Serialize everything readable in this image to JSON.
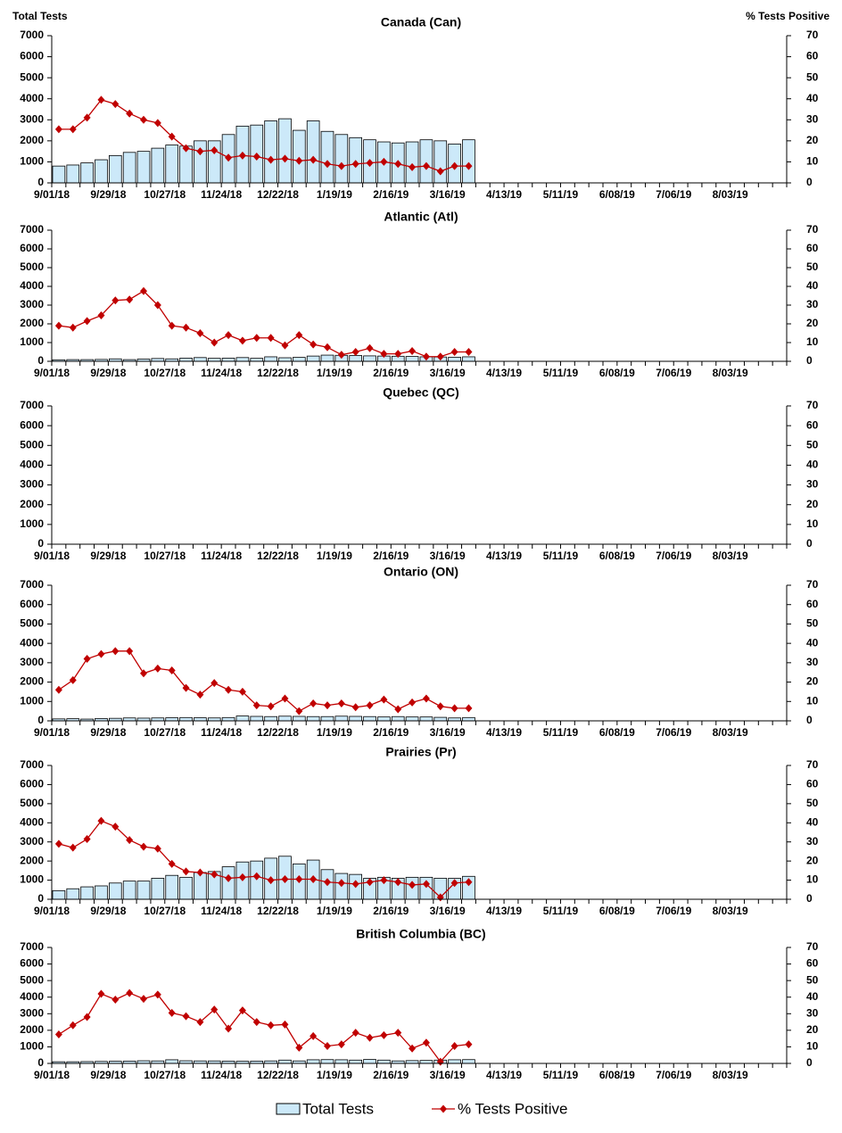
{
  "chart_data": [
    {
      "type": "bar_line",
      "title": "Canada (Can)",
      "y_label": "Total Tests",
      "y2_label": "% Tests Positive",
      "categories": [
        "9/01/18",
        null,
        null,
        null,
        "9/29/18",
        null,
        null,
        null,
        "10/27/18",
        null,
        null,
        null,
        "11/24/18",
        null,
        null,
        null,
        "12/22/18",
        null,
        null,
        null,
        "1/19/19",
        null,
        null,
        null,
        "2/16/19",
        null,
        null,
        null,
        "3/16/19",
        null,
        null,
        null,
        "4/13/19",
        null,
        null,
        null,
        "5/11/19",
        null,
        null,
        null,
        "6/08/19",
        null,
        null,
        null,
        "7/06/19",
        null,
        null,
        null,
        "8/03/19",
        null,
        null,
        null
      ],
      "series": [
        {
          "name": "Total Tests",
          "color": "#cce9f9",
          "values": [
            800,
            850,
            950,
            1100,
            1300,
            1450,
            1500,
            1650,
            1800,
            1750,
            2000,
            2000,
            2300,
            2700,
            2750,
            2950,
            3050,
            2500,
            2950,
            2450,
            2300,
            2150,
            2050,
            1950,
            1900,
            1950,
            2050,
            2000,
            1850,
            2050,
            null,
            null,
            null,
            null,
            null,
            null,
            null,
            null,
            null,
            null,
            null,
            null,
            null,
            null,
            null,
            null,
            null,
            null,
            null,
            null,
            null,
            null
          ]
        },
        {
          "name": "% Tests Positive",
          "color": "#c00000",
          "axis": "y2",
          "values": [
            25.5,
            25.5,
            31,
            39.5,
            37.5,
            33,
            30,
            28.5,
            22,
            16.5,
            15,
            15.5,
            12,
            13,
            12.5,
            11,
            11.5,
            10.5,
            11,
            9,
            8,
            9,
            9.5,
            10,
            9,
            7.5,
            8,
            5.5,
            8,
            8,
            null,
            null,
            null,
            null,
            null,
            null,
            null,
            null,
            null,
            null,
            null,
            null,
            null,
            null,
            null,
            null,
            null,
            null,
            null,
            null,
            null,
            null
          ]
        }
      ],
      "ylim": [
        0,
        7000
      ],
      "yticks": [
        0,
        1000,
        2000,
        3000,
        4000,
        5000,
        6000,
        7000
      ],
      "y2lim": [
        0,
        70
      ],
      "y2ticks": [
        0,
        10,
        20,
        30,
        40,
        50,
        60,
        70
      ]
    },
    {
      "type": "bar_line",
      "title": "Atlantic (Atl)",
      "categories": [
        "9/01/18",
        null,
        null,
        null,
        "9/29/18",
        null,
        null,
        null,
        "10/27/18",
        null,
        null,
        null,
        "11/24/18",
        null,
        null,
        null,
        "12/22/18",
        null,
        null,
        null,
        "1/19/19",
        null,
        null,
        null,
        "2/16/19",
        null,
        null,
        null,
        "3/16/19",
        null,
        null,
        null,
        "4/13/19",
        null,
        null,
        null,
        "5/11/19",
        null,
        null,
        null,
        "6/08/19",
        null,
        null,
        null,
        "7/06/19",
        null,
        null,
        null,
        "8/03/19",
        null,
        null,
        null
      ],
      "series": [
        {
          "color": "#cce9f9",
          "values": [
            80,
            90,
            90,
            100,
            130,
            90,
            120,
            150,
            130,
            170,
            200,
            160,
            170,
            200,
            160,
            240,
            190,
            210,
            280,
            330,
            320,
            310,
            290,
            280,
            270,
            260,
            240,
            230,
            220,
            240,
            null,
            null,
            null,
            null,
            null,
            null,
            null,
            null,
            null,
            null,
            null,
            null,
            null,
            null,
            null,
            null,
            null,
            null,
            null,
            null,
            null,
            null
          ]
        },
        {
          "color": "#c00000",
          "axis": "y2",
          "values": [
            19,
            18,
            21.5,
            24.5,
            32.5,
            33,
            37.5,
            30,
            19,
            18,
            15,
            10,
            14,
            11,
            12.5,
            12.5,
            8.5,
            14,
            9,
            7.5,
            3.5,
            5,
            7,
            4,
            4,
            5.5,
            2.5,
            2.5,
            5,
            5,
            null,
            null,
            null,
            null,
            null,
            null,
            null,
            null,
            null,
            null,
            null,
            null,
            null,
            null,
            null,
            null,
            null,
            null,
            null,
            null,
            null,
            null
          ]
        }
      ],
      "ylim": [
        0,
        7000
      ],
      "yticks": [
        0,
        1000,
        2000,
        3000,
        4000,
        5000,
        6000,
        7000
      ],
      "y2lim": [
        0,
        70
      ],
      "y2ticks": [
        0,
        10,
        20,
        30,
        40,
        50,
        60,
        70
      ]
    },
    {
      "type": "bar_line",
      "title": "Quebec (QC)",
      "categories": [
        "9/01/18",
        null,
        null,
        null,
        "9/29/18",
        null,
        null,
        null,
        "10/27/18",
        null,
        null,
        null,
        "11/24/18",
        null,
        null,
        null,
        "12/22/18",
        null,
        null,
        null,
        "1/19/19",
        null,
        null,
        null,
        "2/16/19",
        null,
        null,
        null,
        "3/16/19",
        null,
        null,
        null,
        "4/13/19",
        null,
        null,
        null,
        "5/11/19",
        null,
        null,
        null,
        "6/08/19",
        null,
        null,
        null,
        "7/06/19",
        null,
        null,
        null,
        "8/03/19",
        null,
        null,
        null
      ],
      "series": [
        {
          "color": "#cce9f9",
          "values": [
            null,
            null,
            null,
            null,
            null,
            null,
            null,
            null,
            null,
            null,
            null,
            null,
            null,
            null,
            null,
            null,
            null,
            null,
            null,
            null,
            null,
            null,
            null,
            null,
            null,
            null,
            null,
            null,
            null,
            null,
            null,
            null,
            null,
            null,
            null,
            null,
            null,
            null,
            null,
            null,
            null,
            null,
            null,
            null,
            null,
            null,
            null,
            null,
            null,
            null,
            null,
            null
          ]
        },
        {
          "color": "#c00000",
          "axis": "y2",
          "values": [
            null,
            null,
            null,
            null,
            null,
            null,
            null,
            null,
            null,
            null,
            null,
            null,
            null,
            null,
            null,
            null,
            null,
            null,
            null,
            null,
            null,
            null,
            null,
            null,
            null,
            null,
            null,
            null,
            null,
            null,
            null,
            null,
            null,
            null,
            null,
            null,
            null,
            null,
            null,
            null,
            null,
            null,
            null,
            null,
            null,
            null,
            null,
            null,
            null,
            null,
            null,
            null
          ]
        }
      ],
      "ylim": [
        0,
        7000
      ],
      "yticks": [
        0,
        1000,
        2000,
        3000,
        4000,
        5000,
        6000,
        7000
      ],
      "y2lim": [
        0,
        70
      ],
      "y2ticks": [
        0,
        10,
        20,
        30,
        40,
        50,
        60,
        70
      ]
    },
    {
      "type": "bar_line",
      "title": "Ontario (ON)",
      "categories": [
        "9/01/18",
        null,
        null,
        null,
        "9/29/18",
        null,
        null,
        null,
        "10/27/18",
        null,
        null,
        null,
        "11/24/18",
        null,
        null,
        null,
        "12/22/18",
        null,
        null,
        null,
        "1/19/19",
        null,
        null,
        null,
        "2/16/19",
        null,
        null,
        null,
        "3/16/19",
        null,
        null,
        null,
        "4/13/19",
        null,
        null,
        null,
        "5/11/19",
        null,
        null,
        null,
        "6/08/19",
        null,
        null,
        null,
        "7/06/19",
        null,
        null,
        null,
        "8/03/19",
        null,
        null,
        null
      ],
      "series": [
        {
          "color": "#cce9f9",
          "values": [
            100,
            110,
            90,
            120,
            130,
            150,
            140,
            150,
            160,
            170,
            160,
            150,
            170,
            250,
            230,
            220,
            240,
            230,
            220,
            220,
            240,
            230,
            220,
            200,
            220,
            200,
            200,
            180,
            150,
            170,
            null,
            null,
            null,
            null,
            null,
            null,
            null,
            null,
            null,
            null,
            null,
            null,
            null,
            null,
            null,
            null,
            null,
            null,
            null,
            null,
            null,
            null
          ]
        },
        {
          "color": "#c00000",
          "axis": "y2",
          "values": [
            16,
            21,
            32,
            34.5,
            36,
            36,
            24.5,
            27,
            26,
            17,
            13.5,
            19.5,
            16,
            15,
            8,
            7.5,
            11.5,
            5,
            9,
            8,
            9,
            7,
            8,
            11,
            6,
            9.5,
            11.5,
            7.5,
            6.5,
            6.5,
            null,
            null,
            null,
            null,
            null,
            null,
            null,
            null,
            null,
            null,
            null,
            null,
            null,
            null,
            null,
            null,
            null,
            null,
            null,
            null,
            null,
            null
          ]
        }
      ],
      "ylim": [
        0,
        7000
      ],
      "yticks": [
        0,
        1000,
        2000,
        3000,
        4000,
        5000,
        6000,
        7000
      ],
      "y2lim": [
        0,
        70
      ],
      "y2ticks": [
        0,
        10,
        20,
        30,
        40,
        50,
        60,
        70
      ]
    },
    {
      "type": "bar_line",
      "title": "Prairies (Pr)",
      "categories": [
        "9/01/18",
        null,
        null,
        null,
        "9/29/18",
        null,
        null,
        null,
        "10/27/18",
        null,
        null,
        null,
        "11/24/18",
        null,
        null,
        null,
        "12/22/18",
        null,
        null,
        null,
        "1/19/19",
        null,
        null,
        null,
        "2/16/19",
        null,
        null,
        null,
        "3/16/19",
        null,
        null,
        null,
        "4/13/19",
        null,
        null,
        null,
        "5/11/19",
        null,
        null,
        null,
        "6/08/19",
        null,
        null,
        null,
        "7/06/19",
        null,
        null,
        null,
        "8/03/19",
        null,
        null,
        null
      ],
      "series": [
        {
          "color": "#cce9f9",
          "values": [
            450,
            550,
            650,
            700,
            850,
            950,
            950,
            1100,
            1250,
            1150,
            1400,
            1450,
            1700,
            1950,
            2000,
            2150,
            2250,
            1850,
            2050,
            1550,
            1350,
            1300,
            1100,
            1150,
            1100,
            1150,
            1150,
            1100,
            1100,
            1200,
            null,
            null,
            null,
            null,
            null,
            null,
            null,
            null,
            null,
            null,
            null,
            null,
            null,
            null,
            null,
            null,
            null,
            null,
            null,
            null,
            null,
            null
          ]
        },
        {
          "color": "#c00000",
          "axis": "y2",
          "values": [
            29,
            27,
            31.5,
            41,
            38,
            31,
            27.5,
            26.5,
            18.5,
            14.5,
            14,
            13,
            11,
            11.5,
            12,
            10,
            10.5,
            10.5,
            10.5,
            9,
            8.5,
            8,
            9,
            10,
            9,
            7.5,
            8,
            1,
            8.5,
            9,
            null,
            null,
            null,
            null,
            null,
            null,
            null,
            null,
            null,
            null,
            null,
            null,
            null,
            null,
            null,
            null,
            null,
            null,
            null,
            null,
            null,
            null
          ]
        }
      ],
      "ylim": [
        0,
        7000
      ],
      "yticks": [
        0,
        1000,
        2000,
        3000,
        4000,
        5000,
        6000,
        7000
      ],
      "y2lim": [
        0,
        70
      ],
      "y2ticks": [
        0,
        10,
        20,
        30,
        40,
        50,
        60,
        70
      ]
    },
    {
      "type": "bar_line",
      "title": "British Columbia (BC)",
      "categories": [
        "9/01/18",
        null,
        null,
        null,
        "9/29/18",
        null,
        null,
        null,
        "10/27/18",
        null,
        null,
        null,
        "11/24/18",
        null,
        null,
        null,
        "12/22/18",
        null,
        null,
        null,
        "1/19/19",
        null,
        null,
        null,
        "2/16/19",
        null,
        null,
        null,
        "3/16/19",
        null,
        null,
        null,
        "4/13/19",
        null,
        null,
        null,
        "5/11/19",
        null,
        null,
        null,
        "6/08/19",
        null,
        null,
        null,
        "7/06/19",
        null,
        null,
        null,
        "8/03/19",
        null,
        null,
        null
      ],
      "series": [
        {
          "color": "#cce9f9",
          "values": [
            100,
            100,
            110,
            120,
            130,
            140,
            160,
            150,
            220,
            160,
            150,
            150,
            140,
            130,
            140,
            150,
            200,
            150,
            220,
            230,
            220,
            200,
            240,
            200,
            150,
            170,
            180,
            200,
            220,
            230,
            null,
            null,
            null,
            null,
            null,
            null,
            null,
            null,
            null,
            null,
            null,
            null,
            null,
            null,
            null,
            null,
            null,
            null,
            null,
            null,
            null,
            null
          ]
        },
        {
          "color": "#c00000",
          "axis": "y2",
          "values": [
            17.5,
            23,
            28,
            42,
            38.5,
            42.5,
            39,
            41.5,
            30.5,
            28.5,
            25,
            32.5,
            21,
            32,
            25,
            23,
            23.5,
            9.5,
            16.5,
            10.5,
            11.5,
            18.5,
            15.5,
            17,
            18.5,
            9,
            12.5,
            1,
            10.5,
            11.5,
            null,
            null,
            null,
            null,
            null,
            null,
            null,
            null,
            null,
            null,
            null,
            null,
            null,
            null,
            null,
            null,
            null,
            null,
            null,
            null,
            null,
            null
          ]
        }
      ],
      "ylim": [
        0,
        7000
      ],
      "yticks": [
        0,
        1000,
        2000,
        3000,
        4000,
        5000,
        6000,
        7000
      ],
      "y2lim": [
        0,
        70
      ],
      "y2ticks": [
        0,
        10,
        20,
        30,
        40,
        50,
        60,
        70
      ]
    }
  ]
}
